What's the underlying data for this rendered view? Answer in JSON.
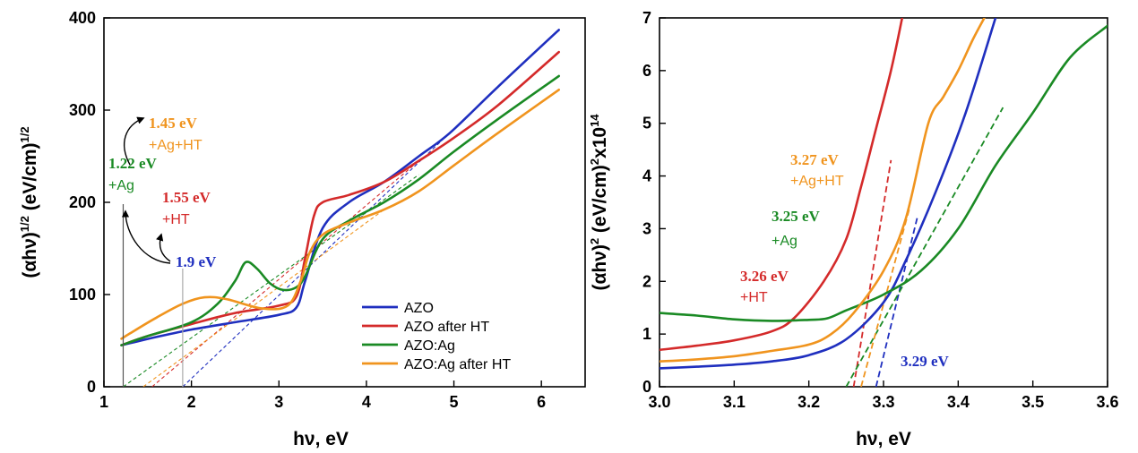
{
  "colors": {
    "AZO": "#1f2fbf",
    "AZO after HT": "#d42a2a",
    "AZO:Ag": "#1a8a24",
    "AZO:Ag after HT": "#f0941e"
  },
  "chart_data": [
    {
      "type": "line",
      "title": "",
      "xlabel": "hν, eV",
      "ylabel": "(αhν)^1/2 (eV/cm)^1/2",
      "xlim": [
        1,
        6.5
      ],
      "ylim": [
        0,
        400
      ],
      "xticks": [
        "1",
        "2",
        "3",
        "4",
        "5",
        "6"
      ],
      "yticks": [
        "0",
        "100",
        "200",
        "300",
        "400"
      ],
      "legend": {
        "position": "center-right",
        "entries": [
          "AZO",
          "AZO after HT",
          "AZO:Ag",
          "AZO:Ag after HT"
        ]
      },
      "series": [
        {
          "name": "AZO",
          "x": [
            1.2,
            1.6,
            2.0,
            2.5,
            3.0,
            3.2,
            3.3,
            3.5,
            3.8,
            4.2,
            4.6,
            4.95,
            5.5,
            6.2
          ],
          "y": [
            45,
            54,
            62,
            70,
            78,
            86,
            115,
            172,
            200,
            222,
            250,
            275,
            325,
            387
          ]
        },
        {
          "name": "AZO after HT",
          "x": [
            1.2,
            1.5,
            2.0,
            2.5,
            3.0,
            3.2,
            3.3,
            3.4,
            3.5,
            3.8,
            4.2,
            4.6,
            5.0,
            5.5,
            6.2
          ],
          "y": [
            45,
            55,
            68,
            80,
            88,
            98,
            140,
            185,
            200,
            208,
            222,
            245,
            270,
            305,
            363
          ]
        },
        {
          "name": "AZO:Ag",
          "x": [
            1.2,
            1.5,
            2.0,
            2.3,
            2.5,
            2.62,
            2.75,
            2.9,
            3.05,
            3.2,
            3.3,
            3.5,
            3.8,
            4.2,
            4.6,
            5.0,
            5.5,
            6.2
          ],
          "y": [
            45,
            55,
            70,
            90,
            115,
            135,
            128,
            112,
            105,
            108,
            120,
            160,
            180,
            200,
            225,
            255,
            290,
            337
          ]
        },
        {
          "name": "AZO:Ag after HT",
          "x": [
            1.2,
            1.3,
            1.6,
            1.9,
            2.15,
            2.4,
            2.8,
            3.1,
            3.25,
            3.35,
            3.5,
            3.8,
            4.2,
            4.6,
            5.0,
            5.5,
            6.2
          ],
          "y": [
            52,
            58,
            75,
            90,
            97,
            95,
            85,
            88,
            115,
            145,
            165,
            178,
            192,
            212,
            240,
            275,
            322
          ]
        }
      ],
      "fit_lines": [
        {
          "series": "AZO",
          "x": [
            1.9,
            4.95
          ],
          "y": [
            0,
            275
          ]
        },
        {
          "series": "AZO after HT",
          "x": [
            1.55,
            4.6
          ],
          "y": [
            0,
            245
          ]
        },
        {
          "series": "AZO:Ag",
          "x": [
            1.22,
            4.6
          ],
          "y": [
            0,
            230
          ]
        },
        {
          "series": "AZO:Ag after HT",
          "x": [
            1.45,
            4.2
          ],
          "y": [
            0,
            192
          ]
        }
      ],
      "annotations": [
        {
          "lines": [
            "1.45 eV",
            "+Ag+HT"
          ],
          "series": "AZO:Ag after HT"
        },
        {
          "lines": [
            "1.22 eV",
            "+Ag"
          ],
          "series": "AZO:Ag"
        },
        {
          "lines": [
            "1.55 eV",
            "+HT"
          ],
          "series": "AZO after HT"
        },
        {
          "lines": [
            "1.9 eV"
          ],
          "series": "AZO"
        }
      ]
    },
    {
      "type": "line",
      "title": "",
      "xlabel": "hν, eV",
      "ylabel": "(αhν)^2 (eV/cm)^2x10^14",
      "xlim": [
        3.0,
        3.6
      ],
      "ylim": [
        0,
        7
      ],
      "xticks": [
        "3.0",
        "3.1",
        "3.2",
        "3.3",
        "3.4",
        "3.5",
        "3.6"
      ],
      "yticks": [
        "0",
        "1",
        "2",
        "3",
        "4",
        "5",
        "6",
        "7"
      ],
      "series": [
        {
          "name": "AZO",
          "x": [
            3.0,
            3.05,
            3.1,
            3.15,
            3.2,
            3.25,
            3.3,
            3.33,
            3.37,
            3.41,
            3.45
          ],
          "y": [
            0.35,
            0.38,
            0.42,
            0.48,
            0.6,
            0.9,
            1.6,
            2.4,
            3.7,
            5.2,
            7.0
          ]
        },
        {
          "name": "AZO after HT",
          "x": [
            3.0,
            3.05,
            3.1,
            3.15,
            3.18,
            3.22,
            3.25,
            3.27,
            3.29,
            3.31,
            3.325
          ],
          "y": [
            0.7,
            0.78,
            0.88,
            1.05,
            1.3,
            2.0,
            2.8,
            3.8,
            4.9,
            6.0,
            7.0
          ]
        },
        {
          "name": "AZO:Ag",
          "x": [
            3.0,
            3.05,
            3.1,
            3.15,
            3.2,
            3.225,
            3.25,
            3.3,
            3.35,
            3.4,
            3.45,
            3.5,
            3.55,
            3.6
          ],
          "y": [
            1.4,
            1.35,
            1.28,
            1.25,
            1.27,
            1.3,
            1.45,
            1.75,
            2.2,
            3.0,
            4.2,
            5.2,
            6.25,
            6.85
          ]
        },
        {
          "name": "AZO:Ag after HT",
          "x": [
            3.0,
            3.05,
            3.1,
            3.15,
            3.2,
            3.23,
            3.26,
            3.3,
            3.33,
            3.36,
            3.38,
            3.4,
            3.42,
            3.435
          ],
          "y": [
            0.48,
            0.52,
            0.58,
            0.68,
            0.8,
            1.0,
            1.4,
            2.2,
            3.2,
            5.0,
            5.5,
            6.0,
            6.6,
            7.0
          ]
        }
      ],
      "fit_lines": [
        {
          "series": "AZO",
          "x": [
            3.29,
            3.345
          ],
          "y": [
            0,
            3.2
          ]
        },
        {
          "series": "AZO after HT",
          "x": [
            3.26,
            3.31
          ],
          "y": [
            0,
            4.3
          ]
        },
        {
          "series": "AZO:Ag",
          "x": [
            3.25,
            3.46
          ],
          "y": [
            0,
            5.3
          ]
        },
        {
          "series": "AZO:Ag after HT",
          "x": [
            3.27,
            3.335
          ],
          "y": [
            0,
            3.4
          ]
        }
      ],
      "annotations": [
        {
          "lines": [
            "3.27 eV",
            "+Ag+HT"
          ],
          "series": "AZO:Ag after HT"
        },
        {
          "lines": [
            "3.25 eV",
            "+Ag"
          ],
          "series": "AZO:Ag"
        },
        {
          "lines": [
            "3.26 eV",
            "+HT"
          ],
          "series": "AZO after HT"
        },
        {
          "lines": [
            "3.29 eV"
          ],
          "series": "AZO"
        }
      ]
    }
  ]
}
